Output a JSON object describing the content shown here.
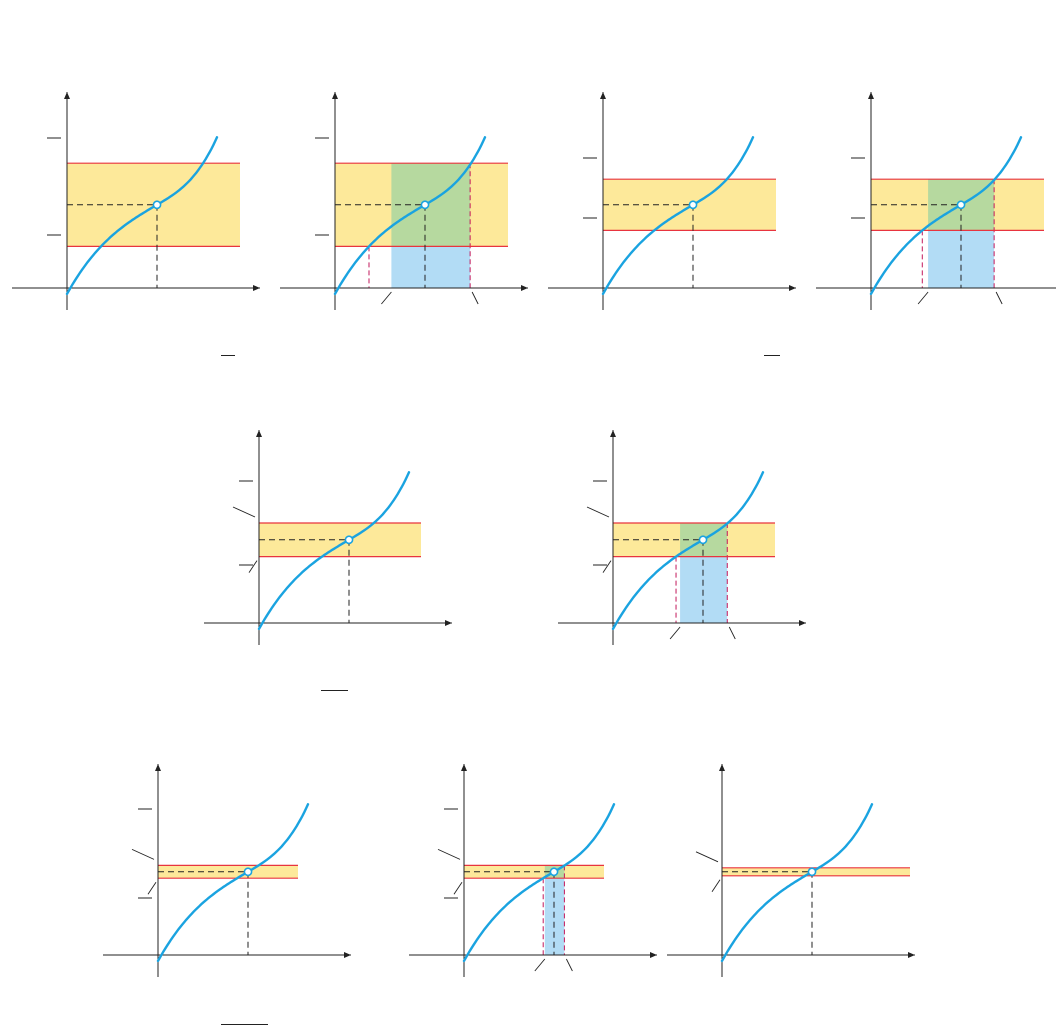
{
  "figure": {
    "colors": {
      "band_fill": "#fde99a",
      "band_edge": "#e8343f",
      "overlap_fill": "#b6d99f",
      "interval_fill": "#b2dcf5",
      "curve": "#1aa3e0",
      "axis": "#222222",
      "guide": "#222222",
      "magenta_guide": "#c2185b"
    },
    "rows": [
      {
        "panels": [
          {
            "band_half": 0.26,
            "interval": "wide",
            "highlight": false
          },
          {
            "band_half": 0.26,
            "interval": "wide",
            "highlight": true
          },
          {
            "band_half": 0.16,
            "interval": "medium",
            "highlight": false
          },
          {
            "band_half": 0.16,
            "interval": "medium",
            "highlight": true
          }
        ]
      },
      {
        "panels": [
          {
            "band_half": 0.105,
            "interval": "narrow",
            "highlight": false
          },
          {
            "band_half": 0.105,
            "interval": "narrow",
            "highlight": true
          }
        ]
      },
      {
        "panels": [
          {
            "band_half": 0.04,
            "interval": "tiny",
            "highlight": false
          },
          {
            "band_half": 0.04,
            "interval": "tiny",
            "highlight": true
          },
          {
            "band_half": 0.025,
            "interval": "tiny",
            "highlight": false
          }
        ]
      }
    ]
  }
}
